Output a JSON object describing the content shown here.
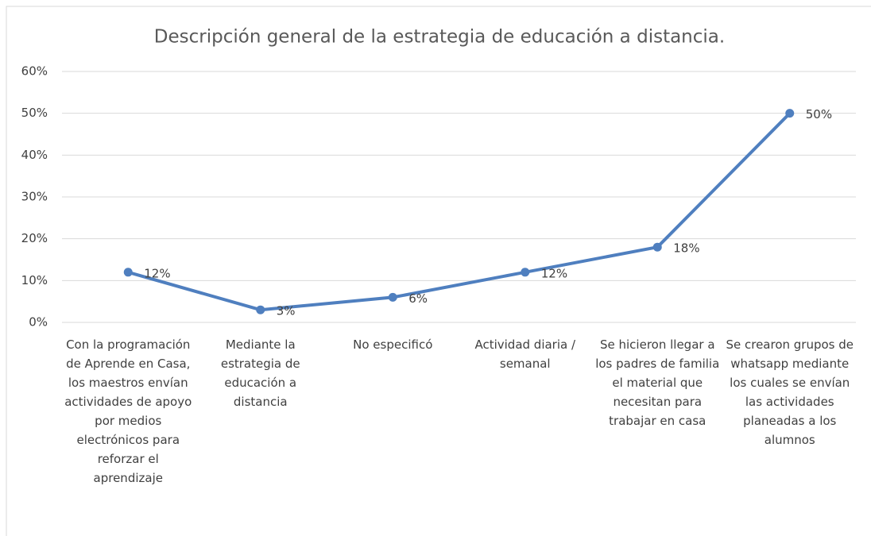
{
  "chart_data": {
    "type": "line",
    "title": "Descripción general de la estrategia de educación a distancia.",
    "categories": [
      "Con la programación de Aprende en Casa, los maestros envían actividades de apoyo por medios electrónicos para reforzar el aprendizaje",
      "Mediante la estrategia de educación a distancia",
      "No especificó",
      "Actividad diaria / semanal",
      "Se hicieron llegar a los padres de familia el material que necesitan para trabajar en casa",
      "Se crearon grupos de whatsapp mediante los cuales se envían las actividades planeadas a los alumnos"
    ],
    "series": [
      {
        "name": "Descripción general de la estrategia de educación a distancia.",
        "color": "#4f7fbf",
        "values": [
          12,
          3,
          6,
          12,
          18,
          50
        ],
        "value_labels": [
          "12%",
          "3%",
          "6%",
          "12%",
          "18%",
          "50%"
        ]
      }
    ],
    "ylim": [
      0,
      60
    ],
    "yticks": [
      {
        "value": 0,
        "label": "0%"
      },
      {
        "value": 10,
        "label": "10%"
      },
      {
        "value": 20,
        "label": "20%"
      },
      {
        "value": 30,
        "label": "30%"
      },
      {
        "value": 40,
        "label": "40%"
      },
      {
        "value": 50,
        "label": "50%"
      },
      {
        "value": 60,
        "label": "60%"
      }
    ],
    "grid": true
  }
}
